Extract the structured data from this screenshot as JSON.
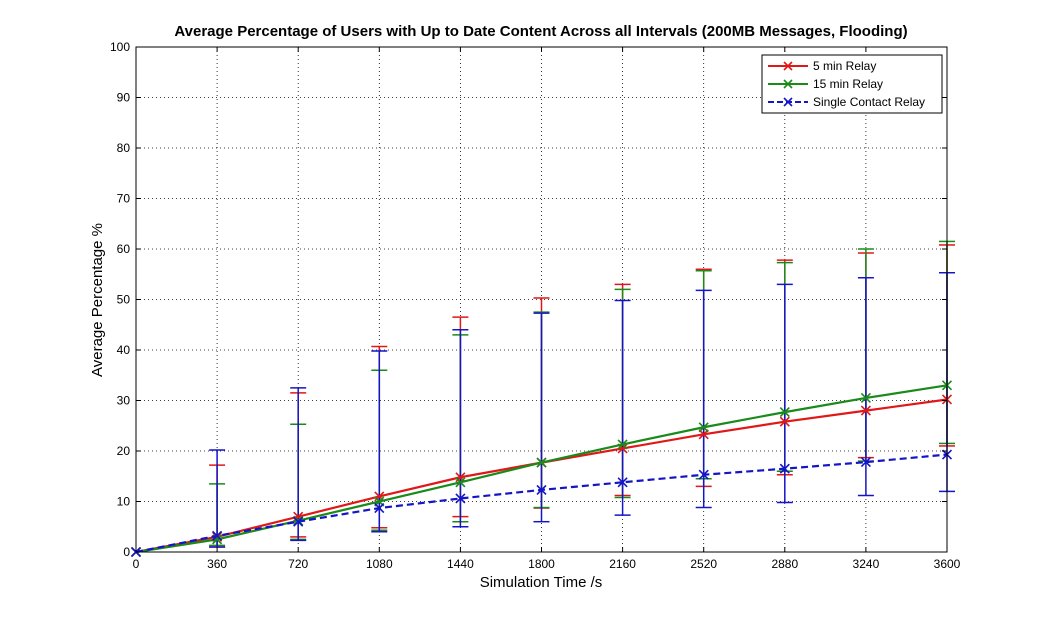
{
  "chart_data": {
    "type": "line",
    "title": "Average Percentage of Users with Up to Date Content Across all Intervals (200MB Messages, Flooding)",
    "xlabel": "Simulation Time /s",
    "ylabel": "Average Percentage %",
    "xlim": [
      0,
      3600
    ],
    "ylim": [
      0,
      100
    ],
    "xticks": [
      0,
      360,
      720,
      1080,
      1440,
      1800,
      2160,
      2520,
      2880,
      3240,
      3600
    ],
    "yticks": [
      0,
      10,
      20,
      30,
      40,
      50,
      60,
      70,
      80,
      90,
      100
    ],
    "grid": true,
    "legend_position": "top-right",
    "x": [
      0,
      360,
      720,
      1080,
      1440,
      1800,
      2160,
      2520,
      2880,
      3240,
      3600
    ],
    "series": [
      {
        "name": "5 min Relay",
        "color": "#e01818",
        "line_style": "solid",
        "marker": "x",
        "values": [
          0,
          3.0,
          7.0,
          11.0,
          14.8,
          17.7,
          20.5,
          23.3,
          25.8,
          28.0,
          30.2
        ],
        "err_low": [
          0,
          1.0,
          3.0,
          4.8,
          7.0,
          8.7,
          11.2,
          13.0,
          15.3,
          18.7,
          21.0
        ],
        "err_high": [
          0,
          17.2,
          31.5,
          40.7,
          46.5,
          50.3,
          53.0,
          56.0,
          57.8,
          59.2,
          60.8
        ]
      },
      {
        "name": "15 min Relay",
        "color": "#1a8a1a",
        "line_style": "solid",
        "marker": "x",
        "values": [
          0,
          2.5,
          6.2,
          10.0,
          13.8,
          17.7,
          21.3,
          24.7,
          27.7,
          30.5,
          33.0
        ],
        "err_low": [
          0,
          1.3,
          2.5,
          4.3,
          6.0,
          8.8,
          10.8,
          14.5,
          16.0,
          18.0,
          21.5
        ],
        "err_high": [
          0,
          13.5,
          25.3,
          36.0,
          43.0,
          47.5,
          52.0,
          55.7,
          57.3,
          60.0,
          61.5
        ]
      },
      {
        "name": "Single Contact Relay",
        "color": "#1515c8",
        "line_style": "dashed",
        "marker": "x",
        "values": [
          0,
          3.2,
          6.0,
          8.7,
          10.6,
          12.3,
          13.8,
          15.3,
          16.5,
          17.8,
          19.3
        ],
        "err_low": [
          0,
          1.0,
          2.3,
          4.0,
          5.0,
          6.0,
          7.3,
          8.8,
          9.8,
          11.2,
          12.0
        ],
        "err_high": [
          0,
          20.2,
          32.5,
          39.8,
          44.0,
          47.3,
          49.8,
          51.8,
          53.0,
          54.3,
          55.3
        ]
      }
    ]
  }
}
